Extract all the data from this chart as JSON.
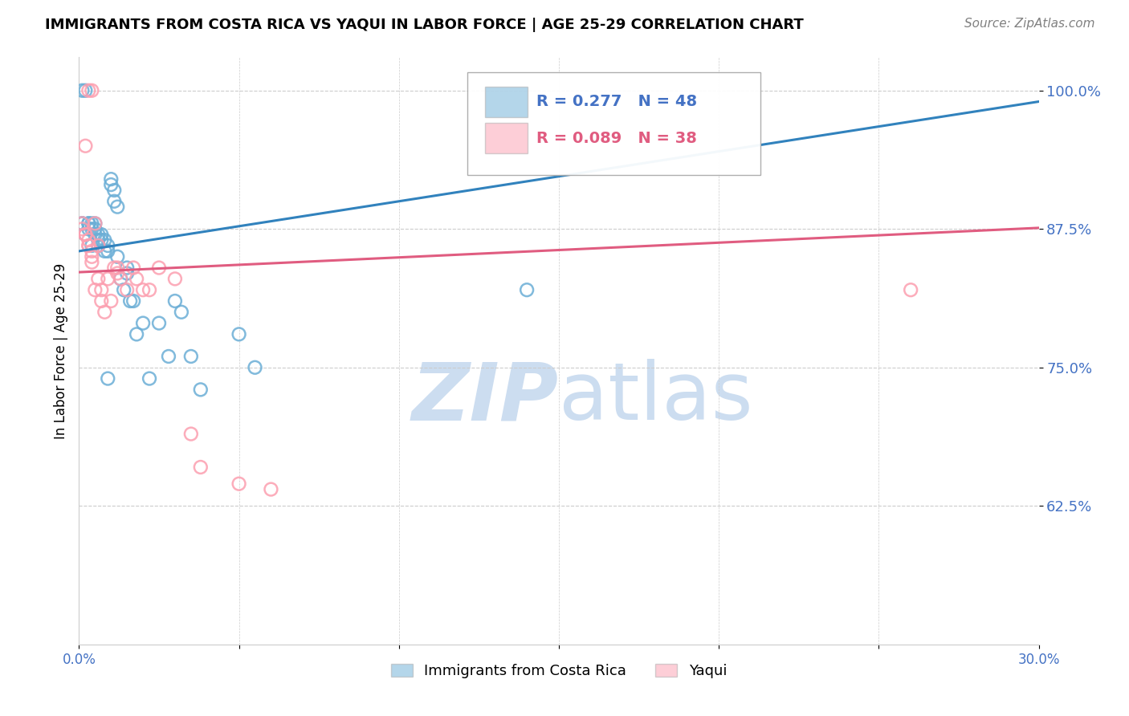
{
  "title": "IMMIGRANTS FROM COSTA RICA VS YAQUI IN LABOR FORCE | AGE 25-29 CORRELATION CHART",
  "source_text": "Source: ZipAtlas.com",
  "ylabel": "In Labor Force | Age 25-29",
  "xlim": [
    0.0,
    0.3
  ],
  "ylim": [
    0.5,
    1.03
  ],
  "yticks": [
    0.625,
    0.75,
    0.875,
    1.0
  ],
  "ytick_labels": [
    "62.5%",
    "75.0%",
    "87.5%",
    "100.0%"
  ],
  "xticks": [
    0.0,
    0.05,
    0.1,
    0.15,
    0.2,
    0.25,
    0.3
  ],
  "xtick_labels": [
    "0.0%",
    "",
    "",
    "",
    "",
    "",
    "30.0%"
  ],
  "blue_r": 0.277,
  "blue_n": 48,
  "pink_r": 0.089,
  "pink_n": 38,
  "legend_label_blue": "Immigrants from Costa Rica",
  "legend_label_pink": "Yaqui",
  "blue_color": "#6baed6",
  "pink_color": "#fc9fb0",
  "blue_line_color": "#3182bd",
  "pink_line_color": "#e05c80",
  "watermark_color": "#ccddf0",
  "blue_scatter_x": [
    0.001,
    0.001,
    0.002,
    0.002,
    0.003,
    0.003,
    0.004,
    0.004,
    0.005,
    0.005,
    0.005,
    0.006,
    0.006,
    0.007,
    0.007,
    0.008,
    0.008,
    0.009,
    0.009,
    0.01,
    0.01,
    0.011,
    0.011,
    0.012,
    0.012,
    0.013,
    0.014,
    0.015,
    0.015,
    0.016,
    0.017,
    0.018,
    0.02,
    0.022,
    0.025,
    0.028,
    0.03,
    0.032,
    0.035,
    0.038,
    0.05,
    0.055,
    0.14,
    0.001,
    0.003,
    0.004,
    0.006,
    0.009
  ],
  "blue_scatter_y": [
    1.0,
    0.88,
    1.0,
    0.87,
    0.88,
    0.875,
    0.88,
    0.875,
    0.88,
    0.875,
    0.87,
    0.87,
    0.865,
    0.87,
    0.865,
    0.855,
    0.865,
    0.86,
    0.855,
    0.92,
    0.915,
    0.91,
    0.9,
    0.895,
    0.85,
    0.83,
    0.82,
    0.84,
    0.835,
    0.81,
    0.81,
    0.78,
    0.79,
    0.74,
    0.79,
    0.76,
    0.81,
    0.8,
    0.76,
    0.73,
    0.78,
    0.75,
    0.82,
    0.88,
    0.88,
    0.86,
    0.86,
    0.74
  ],
  "pink_scatter_x": [
    0.001,
    0.001,
    0.002,
    0.002,
    0.002,
    0.003,
    0.003,
    0.003,
    0.004,
    0.004,
    0.004,
    0.005,
    0.005,
    0.006,
    0.006,
    0.007,
    0.007,
    0.008,
    0.009,
    0.01,
    0.011,
    0.012,
    0.012,
    0.013,
    0.015,
    0.017,
    0.018,
    0.02,
    0.022,
    0.025,
    0.03,
    0.035,
    0.038,
    0.05,
    0.06,
    0.003,
    0.004,
    0.26
  ],
  "pink_scatter_y": [
    0.88,
    0.875,
    0.87,
    0.87,
    0.95,
    0.865,
    0.86,
    0.86,
    0.855,
    0.85,
    0.845,
    0.88,
    0.82,
    0.86,
    0.83,
    0.82,
    0.81,
    0.8,
    0.83,
    0.81,
    0.84,
    0.84,
    0.835,
    0.83,
    0.82,
    0.84,
    0.83,
    0.82,
    0.82,
    0.84,
    0.83,
    0.69,
    0.66,
    0.645,
    0.64,
    1.0,
    1.0,
    0.82
  ],
  "blue_trendline_x": [
    0.0,
    0.3
  ],
  "blue_trendline_y": [
    0.855,
    0.99
  ],
  "pink_trendline_x": [
    0.0,
    0.3
  ],
  "pink_trendline_y": [
    0.836,
    0.876
  ],
  "grid_color": "#cccccc",
  "tick_color": "#4472c4",
  "title_fontsize": 13,
  "source_fontsize": 11,
  "ylabel_fontsize": 12,
  "ytick_fontsize": 13,
  "xtick_fontsize": 12
}
